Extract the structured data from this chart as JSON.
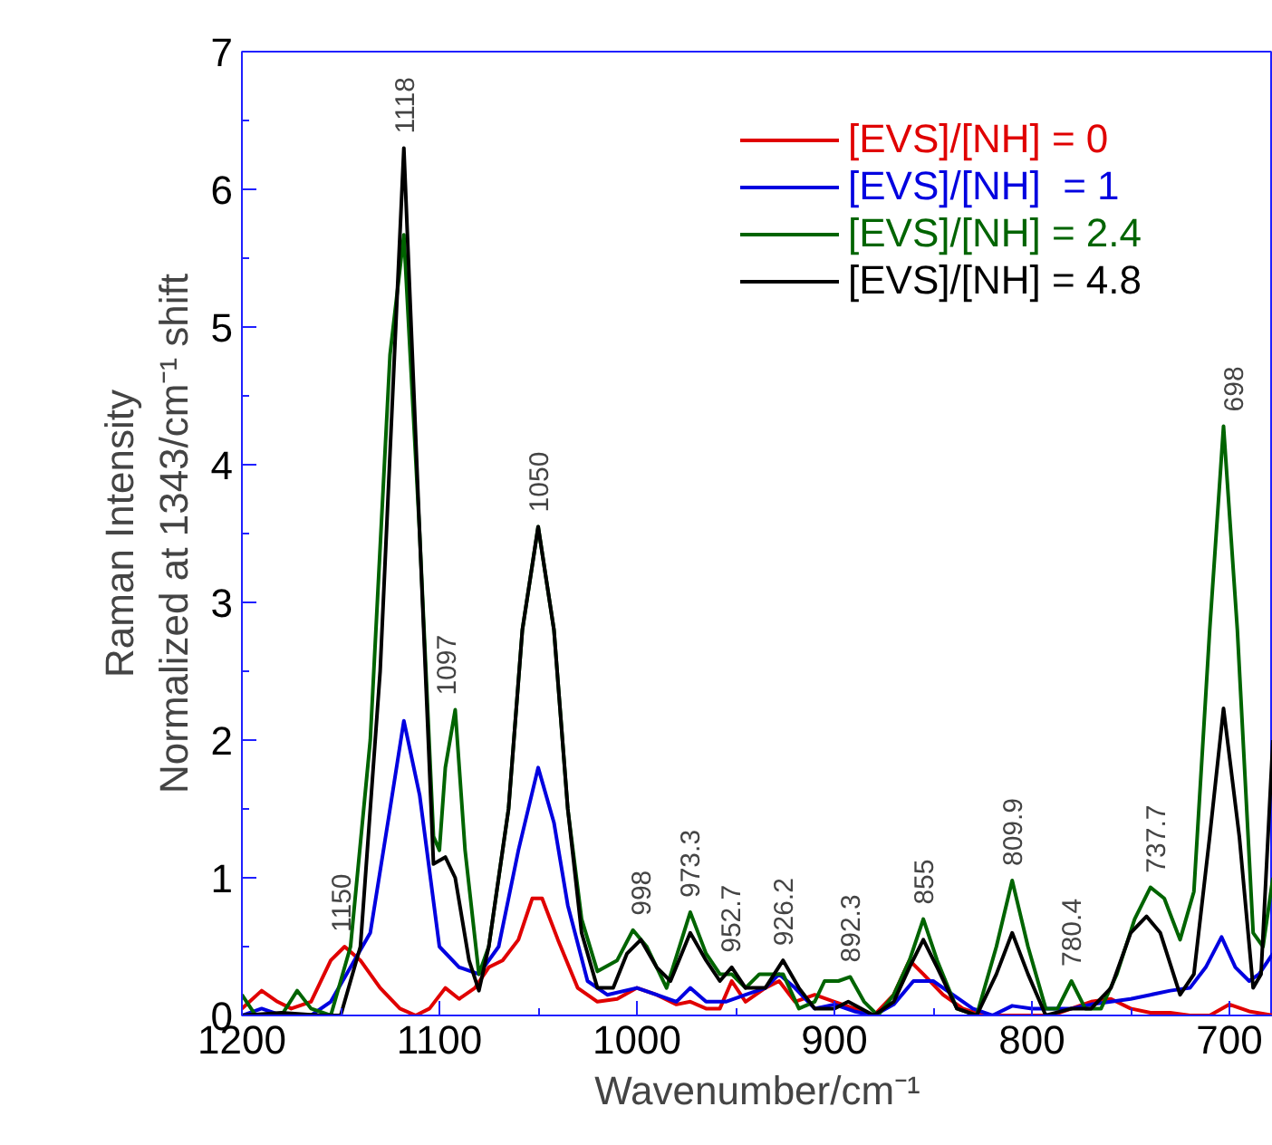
{
  "chart_data": {
    "type": "line",
    "xlabel": "Wavenumber/cm⁻¹",
    "ylabel": "Raman Intensity\nNormalized at 1343/cm⁻¹ shift",
    "xlim": [
      1200,
      678
    ],
    "ylim": [
      0,
      7
    ],
    "xticks": [
      1200,
      1100,
      1000,
      900,
      800,
      700
    ],
    "yticks": [
      0,
      1,
      2,
      3,
      4,
      5,
      6,
      7
    ],
    "grid": false,
    "legend": "top right",
    "line_style": "solid",
    "marker": "none",
    "series": [
      {
        "name": "[EVS]/[NH] = 0",
        "color": "#e00000",
        "x": [
          1200,
          1190,
          1182,
          1175,
          1165,
          1155,
          1148,
          1140,
          1130,
          1120,
          1112,
          1105,
          1097,
          1090,
          1082,
          1075,
          1068,
          1060,
          1053,
          1048,
          1040,
          1030,
          1020,
          1010,
          1000,
          990,
          980,
          973,
          965,
          958,
          952,
          945,
          935,
          928,
          920,
          910,
          900,
          890,
          880,
          870,
          862,
          855,
          845,
          835,
          825,
          810,
          800,
          790,
          780,
          770,
          760,
          750,
          740,
          730,
          720,
          710,
          700,
          690,
          678
        ],
        "values": [
          0.05,
          0.18,
          0.1,
          0.05,
          0.1,
          0.4,
          0.5,
          0.4,
          0.2,
          0.05,
          0.0,
          0.05,
          0.2,
          0.12,
          0.2,
          0.35,
          0.4,
          0.55,
          0.85,
          0.85,
          0.55,
          0.2,
          0.1,
          0.12,
          0.2,
          0.15,
          0.08,
          0.1,
          0.05,
          0.05,
          0.25,
          0.1,
          0.2,
          0.25,
          0.1,
          0.15,
          0.1,
          0.05,
          0.0,
          0.15,
          0.4,
          0.3,
          0.15,
          0.05,
          0.0,
          0.0,
          0.0,
          0.0,
          0.05,
          0.1,
          0.12,
          0.05,
          0.02,
          0.02,
          0.0,
          0.0,
          0.08,
          0.03,
          0.0
        ]
      },
      {
        "name": "[EVS]/[NH]  = 1",
        "color": "#0000e0",
        "x": [
          1200,
          1190,
          1180,
          1165,
          1155,
          1145,
          1135,
          1125,
          1118,
          1110,
          1100,
          1090,
          1080,
          1070,
          1060,
          1050,
          1042,
          1035,
          1025,
          1015,
          1000,
          990,
          980,
          973,
          965,
          955,
          945,
          935,
          928,
          920,
          910,
          900,
          890,
          880,
          870,
          860,
          850,
          840,
          830,
          820,
          810,
          800,
          790,
          780,
          770,
          760,
          750,
          740,
          730,
          720,
          712,
          704,
          697,
          690,
          685,
          678
        ],
        "values": [
          0.0,
          0.05,
          0.0,
          0.0,
          0.1,
          0.35,
          0.6,
          1.5,
          2.14,
          1.6,
          0.5,
          0.35,
          0.3,
          0.5,
          1.2,
          1.8,
          1.4,
          0.8,
          0.25,
          0.15,
          0.2,
          0.15,
          0.1,
          0.2,
          0.1,
          0.1,
          0.15,
          0.2,
          0.3,
          0.2,
          0.05,
          0.08,
          0.03,
          0.0,
          0.08,
          0.25,
          0.25,
          0.15,
          0.05,
          0.0,
          0.07,
          0.05,
          0.05,
          0.05,
          0.08,
          0.1,
          0.12,
          0.15,
          0.18,
          0.2,
          0.35,
          0.57,
          0.35,
          0.25,
          0.3,
          0.45
        ]
      },
      {
        "name": "[EVS]/[NH] = 2.4",
        "color": "#006400",
        "x": [
          1200,
          1193,
          1180,
          1172,
          1165,
          1155,
          1145,
          1135,
          1125,
          1118,
          1110,
          1103,
          1100,
          1097,
          1092,
          1087,
          1080,
          1075,
          1065,
          1058,
          1050,
          1042,
          1035,
          1028,
          1020,
          1010,
          1002,
          995,
          985,
          973,
          965,
          958,
          952,
          945,
          938,
          926,
          918,
          910,
          905,
          898,
          892,
          885,
          878,
          870,
          862,
          855,
          848,
          838,
          828,
          818,
          810,
          802,
          793,
          787,
          780,
          773,
          765,
          757,
          748,
          740,
          733,
          725,
          718,
          710,
          703,
          696,
          688,
          683,
          678
        ],
        "values": [
          0.15,
          0.0,
          0.0,
          0.18,
          0.05,
          0.0,
          0.5,
          2.0,
          4.8,
          5.67,
          3.5,
          1.3,
          1.2,
          1.8,
          2.22,
          1.2,
          0.3,
          0.5,
          1.5,
          2.8,
          3.55,
          2.8,
          1.5,
          0.7,
          0.32,
          0.4,
          0.62,
          0.5,
          0.2,
          0.75,
          0.45,
          0.3,
          0.3,
          0.2,
          0.3,
          0.3,
          0.05,
          0.1,
          0.25,
          0.25,
          0.28,
          0.1,
          0.0,
          0.15,
          0.4,
          0.7,
          0.4,
          0.05,
          0.0,
          0.5,
          0.98,
          0.5,
          0.05,
          0.05,
          0.25,
          0.05,
          0.05,
          0.3,
          0.7,
          0.93,
          0.85,
          0.55,
          0.9,
          2.8,
          4.28,
          2.8,
          0.6,
          0.5,
          1.0
        ]
      },
      {
        "name": "[EVS]/[NH] = 4.8",
        "color": "#000000",
        "x": [
          1200,
          1180,
          1160,
          1150,
          1140,
          1130,
          1118,
          1110,
          1103,
          1097,
          1092,
          1085,
          1080,
          1075,
          1065,
          1058,
          1050,
          1042,
          1035,
          1028,
          1020,
          1012,
          1005,
          998,
          990,
          983,
          973,
          965,
          958,
          952,
          945,
          935,
          926,
          918,
          910,
          900,
          893,
          880,
          870,
          862,
          855,
          848,
          838,
          828,
          818,
          810,
          802,
          793,
          780,
          770,
          760,
          750,
          742,
          735,
          725,
          718,
          710,
          703,
          695,
          688,
          684,
          678
        ],
        "values": [
          0.0,
          0.02,
          0.0,
          0.0,
          0.5,
          2.5,
          6.3,
          3.5,
          1.1,
          1.15,
          1.0,
          0.4,
          0.18,
          0.5,
          1.5,
          2.8,
          3.55,
          2.8,
          1.5,
          0.6,
          0.2,
          0.2,
          0.45,
          0.55,
          0.35,
          0.25,
          0.6,
          0.4,
          0.25,
          0.35,
          0.2,
          0.2,
          0.4,
          0.2,
          0.05,
          0.05,
          0.1,
          0.0,
          0.1,
          0.35,
          0.55,
          0.35,
          0.05,
          0.0,
          0.3,
          0.6,
          0.3,
          0.0,
          0.05,
          0.05,
          0.2,
          0.6,
          0.72,
          0.6,
          0.15,
          0.3,
          1.3,
          2.23,
          1.3,
          0.2,
          0.3,
          2.0
        ]
      }
    ],
    "annotations": [
      {
        "text": "1150",
        "x": 1150,
        "y": 0.5
      },
      {
        "text": "1118",
        "x": 1118,
        "y": 6.3
      },
      {
        "text": "1097",
        "x": 1097,
        "y": 2.22
      },
      {
        "text": "1050",
        "x": 1050,
        "y": 3.55
      },
      {
        "text": "998",
        "x": 998,
        "y": 0.62
      },
      {
        "text": "973.3",
        "x": 973.3,
        "y": 0.75
      },
      {
        "text": "952.7",
        "x": 952.7,
        "y": 0.35
      },
      {
        "text": "926.2",
        "x": 926.2,
        "y": 0.4
      },
      {
        "text": "892.3",
        "x": 892.3,
        "y": 0.28
      },
      {
        "text": "855",
        "x": 855,
        "y": 0.7
      },
      {
        "text": "809.9",
        "x": 809.9,
        "y": 0.98
      },
      {
        "text": "780.4",
        "x": 780.4,
        "y": 0.25
      },
      {
        "text": "737.7",
        "x": 737.7,
        "y": 0.93
      },
      {
        "text": "698",
        "x": 698,
        "y": 4.28
      }
    ]
  }
}
